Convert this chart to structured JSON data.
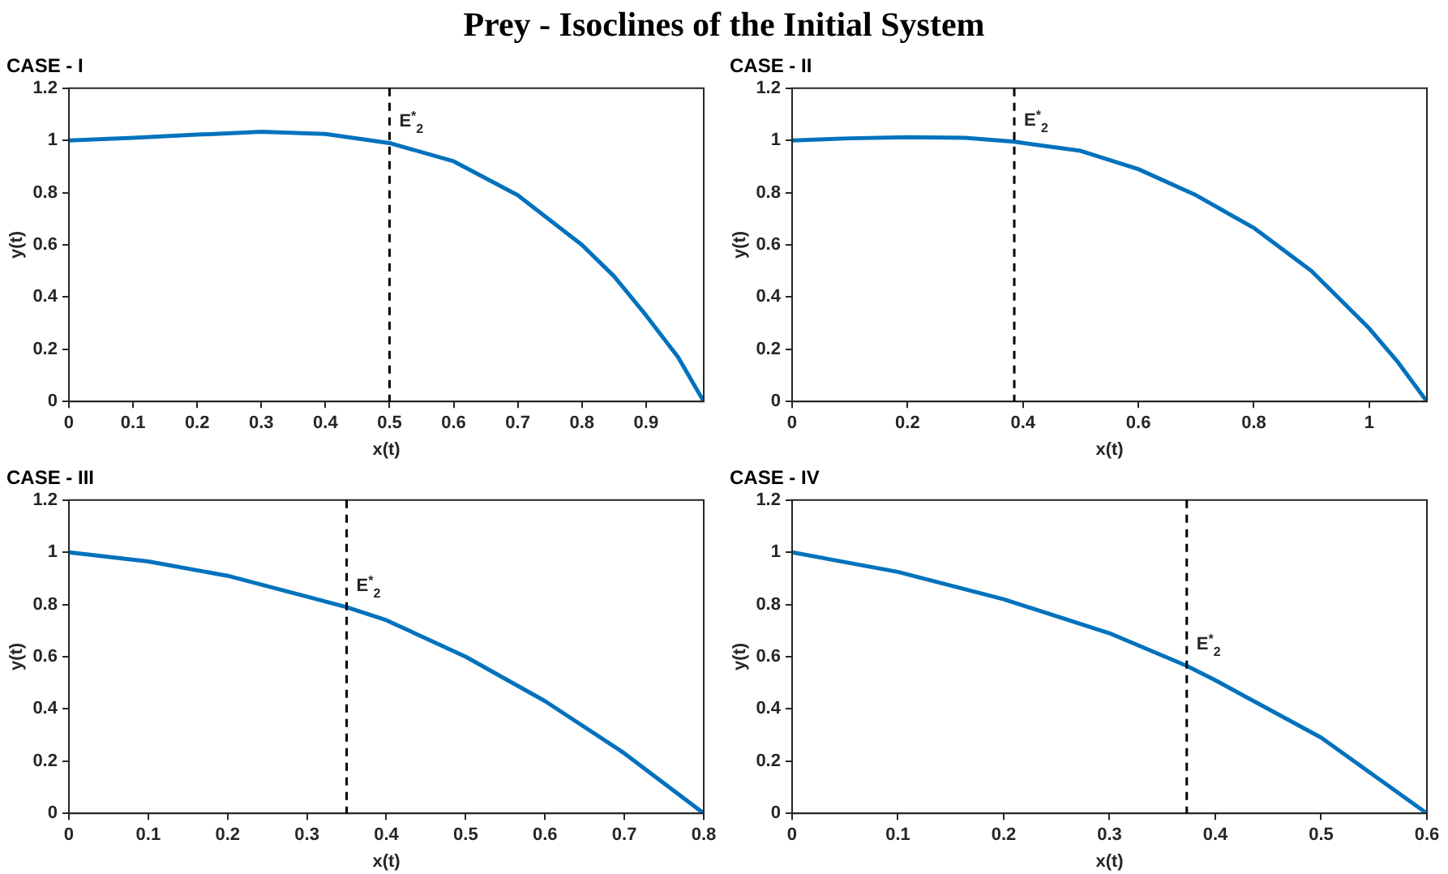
{
  "chart_data": [
    {
      "type": "line",
      "title": "CASE - I",
      "xlabel": "x(t)",
      "ylabel": "y(t)",
      "annotations": [
        "Prey - Isoclines of the Initial System"
      ],
      "x": [
        0,
        0.1,
        0.2,
        0.3,
        0.4,
        0.5,
        0.6,
        0.7,
        0.8,
        0.85,
        0.9,
        0.95,
        0.99
      ],
      "series": [
        {
          "color": "#0072bd",
          "values": [
            1.0,
            1.01,
            1.022,
            1.033,
            1.025,
            0.99,
            0.92,
            0.79,
            0.6,
            0.48,
            0.33,
            0.17,
            0
          ]
        }
      ],
      "xlim": [
        0,
        0.99
      ],
      "xticks": [
        0,
        0.1,
        0.2,
        0.3,
        0.4,
        0.5,
        0.6,
        0.7,
        0.8,
        0.9
      ],
      "ylim": [
        0,
        1.2
      ],
      "yticks": [
        0,
        0.2,
        0.4,
        0.6,
        0.8,
        1,
        1.2
      ],
      "ref_lines": [
        {
          "axis": "x",
          "value": 0.5,
          "label": "E$^{*}$$_{2}$",
          "color": "#000000",
          "line_style": "dashed"
        }
      ],
      "grid": false,
      "legend": false,
      "marker": "none",
      "line_style": "solid"
    },
    {
      "type": "line",
      "title": "CASE - II",
      "xlabel": "x(t)",
      "ylabel": "y(t)",
      "x": [
        0,
        0.1,
        0.2,
        0.3,
        0.385,
        0.5,
        0.6,
        0.7,
        0.8,
        0.9,
        1.0,
        1.05,
        1.1
      ],
      "series": [
        {
          "color": "#0072bd",
          "values": [
            1.0,
            1.008,
            1.012,
            1.01,
            0.995,
            0.96,
            0.89,
            0.79,
            0.665,
            0.5,
            0.28,
            0.15,
            0
          ]
        }
      ],
      "xlim": [
        0,
        1.1
      ],
      "xticks": [
        0,
        0.2,
        0.4,
        0.6,
        0.8,
        1
      ],
      "ylim": [
        0,
        1.2
      ],
      "yticks": [
        0,
        0.2,
        0.4,
        0.6,
        0.8,
        1,
        1.2
      ],
      "ref_lines": [
        {
          "axis": "x",
          "value": 0.385,
          "label": "E$^{*}$$_{2}$",
          "color": "#000000",
          "line_style": "dashed"
        }
      ],
      "grid": false,
      "legend": false,
      "marker": "none",
      "line_style": "solid"
    },
    {
      "type": "line",
      "title": "CASE - III",
      "xlabel": "x(t)",
      "ylabel": "y(t)",
      "x": [
        0,
        0.1,
        0.2,
        0.3,
        0.35,
        0.4,
        0.5,
        0.6,
        0.7,
        0.8
      ],
      "series": [
        {
          "color": "#0072bd",
          "values": [
            1.0,
            0.965,
            0.91,
            0.83,
            0.79,
            0.74,
            0.6,
            0.43,
            0.23,
            0
          ]
        }
      ],
      "xlim": [
        0,
        0.8
      ],
      "xticks": [
        0,
        0.1,
        0.2,
        0.3,
        0.4,
        0.5,
        0.6,
        0.7,
        0.8
      ],
      "ylim": [
        0,
        1.2
      ],
      "yticks": [
        0,
        0.2,
        0.4,
        0.6,
        0.8,
        1,
        1.2
      ],
      "ref_lines": [
        {
          "axis": "x",
          "value": 0.35,
          "label": "E$^{*}$$_{2}$",
          "color": "#000000",
          "line_style": "dashed"
        }
      ],
      "grid": false,
      "legend": false,
      "marker": "none",
      "line_style": "solid"
    },
    {
      "type": "line",
      "title": "CASE - IV",
      "xlabel": "x(t)",
      "ylabel": "y(t)",
      "x": [
        0,
        0.1,
        0.2,
        0.3,
        0.373,
        0.4,
        0.5,
        0.6
      ],
      "series": [
        {
          "color": "#0072bd",
          "values": [
            1.0,
            0.925,
            0.82,
            0.69,
            0.565,
            0.51,
            0.29,
            0
          ]
        }
      ],
      "xlim": [
        0,
        0.6
      ],
      "xticks": [
        0,
        0.1,
        0.2,
        0.3,
        0.4,
        0.5,
        0.6
      ],
      "ylim": [
        0,
        1.2
      ],
      "yticks": [
        0,
        0.2,
        0.4,
        0.6,
        0.8,
        1,
        1.2
      ],
      "ref_lines": [
        {
          "axis": "x",
          "value": 0.373,
          "label": "E$^{*}$$_{2}$",
          "color": "#000000",
          "line_style": "dashed"
        }
      ],
      "grid": false,
      "legend": false,
      "marker": "none",
      "line_style": "solid"
    }
  ]
}
